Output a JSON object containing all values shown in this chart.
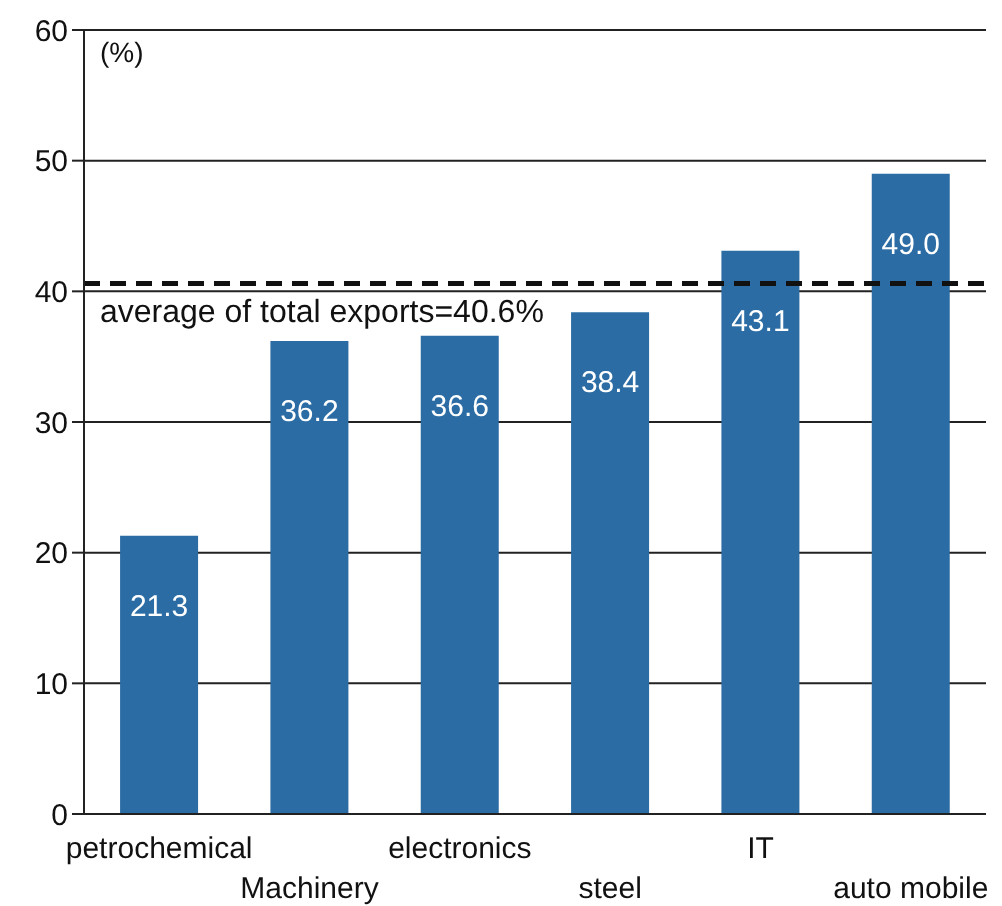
{
  "chart_data": {
    "type": "bar",
    "ylabel": "(%)",
    "categories": [
      "petrochemical",
      "Machinery",
      "electronics",
      "steel",
      "IT",
      "auto mobile"
    ],
    "values": [
      21.3,
      36.2,
      36.6,
      38.4,
      43.1,
      49.0
    ],
    "value_labels": [
      "21.3",
      "36.2",
      "36.6",
      "38.4",
      "43.1",
      "49.0"
    ],
    "color": "#2b6ca4",
    "ylim": [
      0,
      60
    ],
    "yticks": [
      0,
      10,
      20,
      30,
      40,
      50,
      60
    ],
    "grid": "y",
    "ref_lines": [
      {
        "axis": "y",
        "value": 40.6,
        "label": "average of total exports=40.6%",
        "color": "#111111",
        "line_style": "dashed"
      }
    ]
  }
}
